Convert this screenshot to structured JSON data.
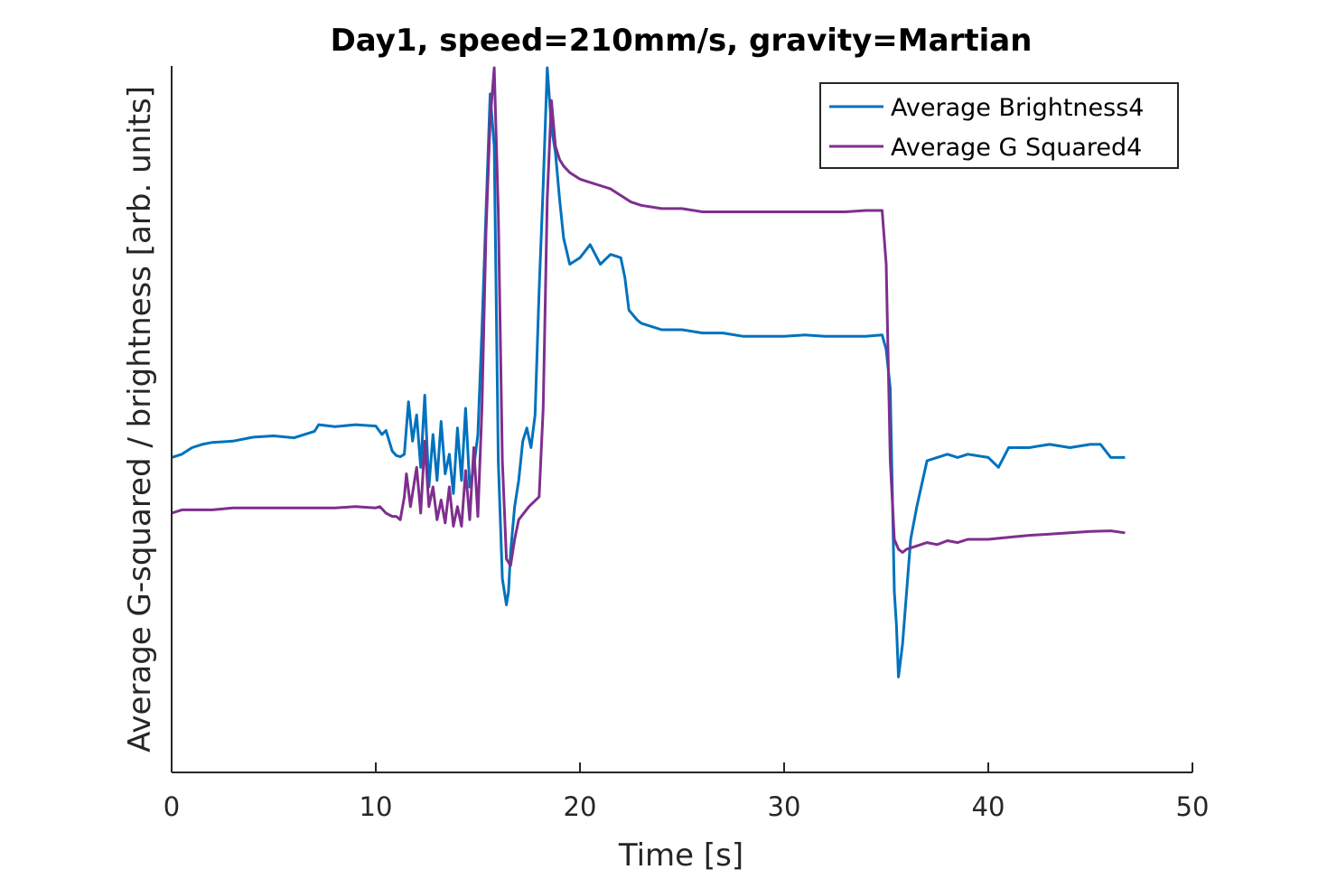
{
  "chart_data": {
    "type": "line",
    "title": "Day1, speed=210mm/s, gravity=Martian",
    "xlabel": "Time [s]",
    "ylabel": "Average G-squared / brightness [arb. units]",
    "xlim": [
      0,
      50
    ],
    "ylim": [
      0,
      100
    ],
    "x_ticks": [
      "0",
      "10",
      "20",
      "30",
      "40",
      "50"
    ],
    "y_ticks": [],
    "grid": false,
    "legend_position": "top-right",
    "series": [
      {
        "name": "Average Brightness4",
        "color": "#0072BD",
        "x": [
          0.0,
          0.5,
          1.0,
          1.5,
          2.0,
          3.0,
          4.0,
          5.0,
          6.0,
          7.0,
          7.2,
          8.0,
          9.0,
          10.0,
          10.3,
          10.5,
          10.8,
          11.0,
          11.2,
          11.4,
          11.5,
          11.6,
          11.8,
          12.0,
          12.2,
          12.4,
          12.6,
          12.8,
          13.0,
          13.2,
          13.4,
          13.6,
          13.8,
          14.0,
          14.2,
          14.4,
          14.6,
          14.8,
          15.0,
          15.2,
          15.4,
          15.6,
          15.8,
          16.0,
          16.2,
          16.4,
          16.5,
          16.6,
          16.8,
          17.0,
          17.2,
          17.4,
          17.6,
          17.8,
          18.0,
          18.2,
          18.4,
          18.6,
          18.8,
          19.0,
          19.2,
          19.5,
          20.0,
          20.5,
          21.0,
          21.5,
          22.0,
          22.2,
          22.4,
          22.8,
          23.0,
          24.0,
          25.0,
          26.0,
          27.0,
          28.0,
          29.0,
          30.0,
          31.0,
          32.0,
          33.0,
          34.0,
          34.8,
          35.0,
          35.2,
          35.4,
          35.5,
          35.6,
          35.8,
          36.0,
          36.2,
          36.5,
          37.0,
          37.5,
          38.0,
          38.5,
          39.0,
          40.0,
          40.5,
          41.0,
          42.0,
          43.0,
          44.0,
          45.0,
          45.5,
          46.0,
          46.7
        ],
        "y": [
          40.5,
          41.0,
          42.0,
          42.5,
          42.8,
          43.0,
          43.6,
          43.8,
          43.5,
          44.5,
          45.5,
          45.2,
          45.5,
          45.3,
          44.0,
          44.6,
          41.5,
          40.8,
          40.6,
          41.0,
          45.0,
          49.0,
          43.0,
          47.0,
          39.0,
          50.0,
          36.0,
          44.0,
          37.0,
          46.0,
          38.0,
          41.0,
          35.0,
          45.0,
          37.0,
          48.0,
          36.0,
          39.0,
          44.0,
          60.0,
          78.0,
          96.0,
          88.0,
          40.0,
          22.0,
          18.0,
          20.0,
          26.0,
          33.0,
          37.0,
          43.0,
          45.0,
          42.0,
          47.0,
          66.0,
          82.0,
          100.0,
          91.0,
          87.0,
          80.0,
          74.0,
          70.0,
          71.0,
          73.0,
          70.0,
          71.5,
          71.0,
          68.0,
          63.0,
          61.5,
          61.0,
          60.0,
          60.0,
          59.5,
          59.5,
          59.0,
          59.0,
          59.0,
          59.2,
          59.0,
          59.0,
          59.0,
          59.2,
          57.0,
          51.0,
          20.0,
          15.0,
          7.0,
          12.0,
          20.0,
          28.0,
          33.0,
          40.0,
          40.5,
          41.0,
          40.5,
          41.0,
          40.5,
          39.0,
          42.0,
          42.0,
          42.5,
          42.0,
          42.5,
          42.5,
          40.5,
          40.5
        ]
      },
      {
        "name": "Average G Squared4",
        "color": "#7E2F8E",
        "x": [
          0.0,
          0.5,
          1.0,
          2.0,
          3.0,
          4.0,
          5.0,
          6.0,
          7.0,
          8.0,
          9.0,
          10.0,
          10.2,
          10.5,
          10.8,
          11.0,
          11.2,
          11.4,
          11.5,
          11.7,
          12.0,
          12.2,
          12.4,
          12.6,
          12.8,
          13.0,
          13.2,
          13.4,
          13.6,
          13.8,
          14.0,
          14.2,
          14.4,
          14.6,
          14.8,
          15.0,
          15.2,
          15.4,
          15.6,
          15.8,
          16.0,
          16.2,
          16.4,
          16.6,
          16.8,
          17.0,
          17.5,
          18.0,
          18.2,
          18.4,
          18.6,
          18.8,
          19.0,
          19.2,
          19.5,
          20.0,
          20.5,
          21.0,
          21.5,
          22.0,
          22.5,
          23.0,
          24.0,
          25.0,
          26.0,
          27.0,
          28.0,
          29.0,
          30.0,
          31.0,
          32.0,
          33.0,
          34.0,
          34.8,
          35.0,
          35.2,
          35.4,
          35.6,
          35.8,
          36.0,
          36.5,
          37.0,
          37.5,
          38.0,
          38.5,
          39.0,
          40.0,
          41.0,
          42.0,
          43.0,
          44.0,
          45.0,
          46.0,
          46.7
        ],
        "y": [
          32.0,
          32.5,
          32.5,
          32.5,
          32.8,
          32.8,
          32.8,
          32.8,
          32.8,
          32.8,
          33.0,
          32.8,
          33.0,
          32.0,
          31.5,
          31.5,
          31.0,
          34.5,
          38.0,
          33.0,
          39.0,
          32.0,
          43.0,
          33.0,
          36.0,
          31.0,
          34.0,
          30.5,
          36.0,
          30.0,
          33.0,
          30.0,
          38.5,
          31.0,
          42.0,
          31.5,
          48.0,
          75.0,
          92.0,
          100.0,
          78.0,
          40.0,
          25.0,
          24.0,
          28.0,
          31.0,
          33.0,
          34.5,
          48.0,
          80.0,
          95.0,
          88.0,
          86.0,
          85.0,
          84.0,
          83.0,
          82.5,
          82.0,
          81.5,
          80.5,
          79.5,
          79.0,
          78.5,
          78.5,
          78.0,
          78.0,
          78.0,
          78.0,
          78.0,
          78.0,
          78.0,
          78.0,
          78.2,
          78.2,
          70.0,
          40.0,
          28.0,
          26.5,
          26.0,
          26.5,
          27.0,
          27.5,
          27.2,
          27.8,
          27.5,
          28.0,
          28.0,
          28.3,
          28.6,
          28.8,
          29.0,
          29.2,
          29.3,
          29.0
        ]
      }
    ]
  }
}
